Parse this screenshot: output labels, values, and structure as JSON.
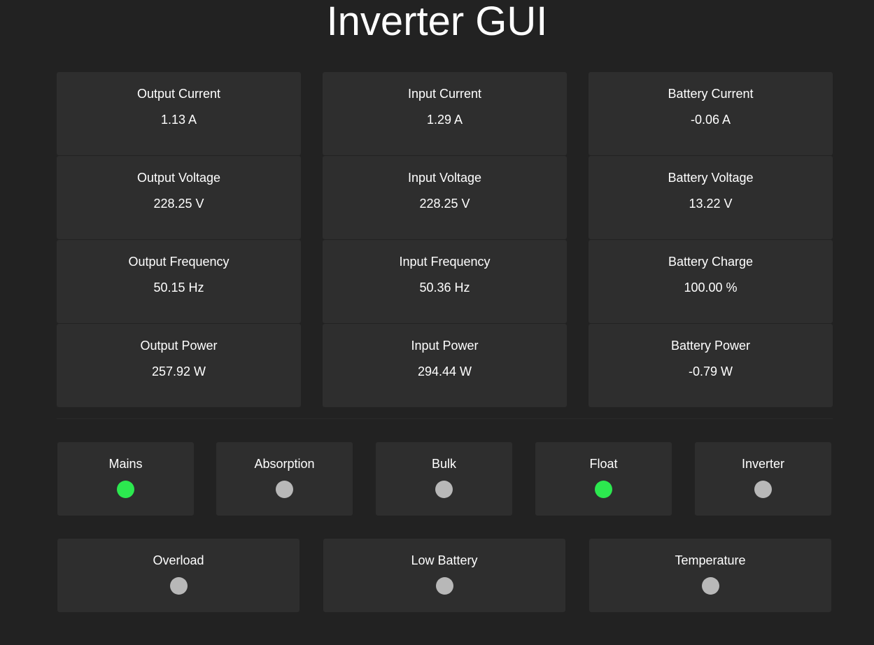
{
  "title": "Inverter GUI",
  "colors": {
    "on": "#2ce84f",
    "off": "#b8b8b8"
  },
  "metrics": [
    {
      "label": "Output Current",
      "value": "1.13 A"
    },
    {
      "label": "Input Current",
      "value": "1.29 A"
    },
    {
      "label": "Battery Current",
      "value": "-0.06 A"
    },
    {
      "label": "Output Voltage",
      "value": "228.25 V"
    },
    {
      "label": "Input Voltage",
      "value": "228.25 V"
    },
    {
      "label": "Battery Voltage",
      "value": "13.22 V"
    },
    {
      "label": "Output Frequency",
      "value": "50.15 Hz"
    },
    {
      "label": "Input Frequency",
      "value": "50.36 Hz"
    },
    {
      "label": "Battery Charge",
      "value": "100.00 %"
    },
    {
      "label": "Output Power",
      "value": "257.92 W"
    },
    {
      "label": "Input Power",
      "value": "294.44 W"
    },
    {
      "label": "Battery Power",
      "value": "-0.79 W"
    }
  ],
  "status": [
    {
      "label": "Mains",
      "on": true
    },
    {
      "label": "Absorption",
      "on": false
    },
    {
      "label": "Bulk",
      "on": false
    },
    {
      "label": "Float",
      "on": true
    },
    {
      "label": "Inverter",
      "on": false
    }
  ],
  "alarms": [
    {
      "label": "Overload",
      "on": false
    },
    {
      "label": "Low Battery",
      "on": false
    },
    {
      "label": "Temperature",
      "on": false
    }
  ]
}
